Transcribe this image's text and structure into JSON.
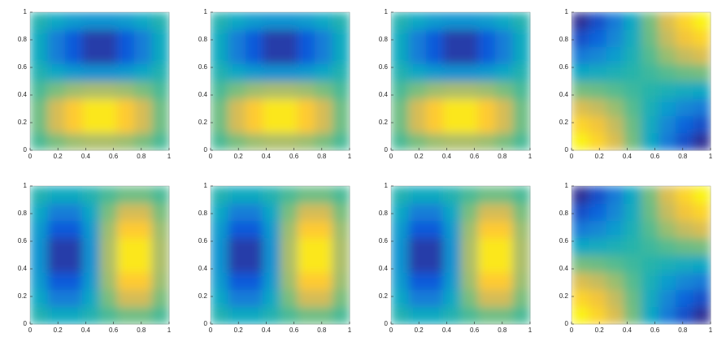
{
  "chart_data": [
    {
      "type": "heatmap",
      "xlim": [
        0,
        1
      ],
      "ylim": [
        0,
        1
      ],
      "xticks": [
        0,
        0.2,
        0.4,
        0.6,
        0.8,
        1
      ],
      "yticks": [
        0,
        0.2,
        0.4,
        0.6,
        0.8,
        1
      ],
      "clim": [
        -1,
        1
      ],
      "colormap": [
        "#352a87",
        "#0f5cdd",
        "#1481d6",
        "#06a4ca",
        "#2eb7a4",
        "#87bf77",
        "#d1bb59",
        "#fec832",
        "#f9fb0e"
      ],
      "z": [
        [
          0.08,
          0.21,
          0.32,
          0.37,
          0.37,
          0.32,
          0.21,
          0.08
        ],
        [
          0.18,
          0.52,
          0.76,
          0.9,
          0.9,
          0.76,
          0.52,
          0.18
        ],
        [
          0.18,
          0.52,
          0.76,
          0.9,
          0.9,
          0.76,
          0.52,
          0.18
        ],
        [
          0.08,
          0.21,
          0.32,
          0.37,
          0.37,
          0.32,
          0.21,
          0.08
        ],
        [
          -0.08,
          -0.21,
          -0.32,
          -0.37,
          -0.37,
          -0.32,
          -0.21,
          -0.08
        ],
        [
          -0.18,
          -0.52,
          -0.76,
          -0.9,
          -0.9,
          -0.76,
          -0.52,
          -0.18
        ],
        [
          -0.18,
          -0.52,
          -0.76,
          -0.9,
          -0.9,
          -0.76,
          -0.52,
          -0.18
        ],
        [
          -0.08,
          -0.21,
          -0.32,
          -0.37,
          -0.37,
          -0.32,
          -0.21,
          -0.08
        ]
      ]
    },
    {
      "type": "heatmap",
      "xlim": [
        0,
        1
      ],
      "ylim": [
        0,
        1
      ],
      "xticks": [
        0,
        0.2,
        0.4,
        0.6,
        0.8,
        1
      ],
      "yticks": [
        0,
        0.2,
        0.4,
        0.6,
        0.8,
        1
      ],
      "clim": [
        -1,
        1
      ],
      "colormap": [
        "#352a87",
        "#0f5cdd",
        "#1481d6",
        "#06a4ca",
        "#2eb7a4",
        "#87bf77",
        "#d1bb59",
        "#fec832",
        "#f9fb0e"
      ],
      "z": [
        [
          0.08,
          0.21,
          0.32,
          0.37,
          0.37,
          0.32,
          0.21,
          0.08
        ],
        [
          0.18,
          0.52,
          0.76,
          0.9,
          0.9,
          0.76,
          0.52,
          0.18
        ],
        [
          0.18,
          0.52,
          0.76,
          0.9,
          0.9,
          0.76,
          0.52,
          0.18
        ],
        [
          0.08,
          0.21,
          0.32,
          0.37,
          0.37,
          0.32,
          0.21,
          0.08
        ],
        [
          -0.08,
          -0.21,
          -0.32,
          -0.37,
          -0.37,
          -0.32,
          -0.21,
          -0.08
        ],
        [
          -0.18,
          -0.52,
          -0.76,
          -0.9,
          -0.9,
          -0.76,
          -0.52,
          -0.18
        ],
        [
          -0.18,
          -0.52,
          -0.76,
          -0.9,
          -0.9,
          -0.76,
          -0.52,
          -0.18
        ],
        [
          -0.08,
          -0.21,
          -0.32,
          -0.37,
          -0.37,
          -0.32,
          -0.21,
          -0.08
        ]
      ]
    },
    {
      "type": "heatmap",
      "xlim": [
        0,
        1
      ],
      "ylim": [
        0,
        1
      ],
      "xticks": [
        0,
        0.2,
        0.4,
        0.6,
        0.8,
        1
      ],
      "yticks": [
        0,
        0.2,
        0.4,
        0.6,
        0.8,
        1
      ],
      "clim": [
        -1,
        1
      ],
      "colormap": [
        "#352a87",
        "#0f5cdd",
        "#1481d6",
        "#06a4ca",
        "#2eb7a4",
        "#87bf77",
        "#d1bb59",
        "#fec832",
        "#f9fb0e"
      ],
      "z": [
        [
          0.08,
          0.21,
          0.32,
          0.37,
          0.37,
          0.32,
          0.21,
          0.08
        ],
        [
          0.18,
          0.52,
          0.76,
          0.9,
          0.9,
          0.76,
          0.52,
          0.18
        ],
        [
          0.18,
          0.52,
          0.76,
          0.9,
          0.9,
          0.76,
          0.52,
          0.18
        ],
        [
          0.08,
          0.21,
          0.32,
          0.37,
          0.37,
          0.32,
          0.21,
          0.08
        ],
        [
          -0.08,
          -0.21,
          -0.32,
          -0.37,
          -0.37,
          -0.32,
          -0.21,
          -0.08
        ],
        [
          -0.18,
          -0.52,
          -0.76,
          -0.9,
          -0.9,
          -0.76,
          -0.52,
          -0.18
        ],
        [
          -0.18,
          -0.52,
          -0.76,
          -0.9,
          -0.9,
          -0.76,
          -0.52,
          -0.18
        ],
        [
          -0.08,
          -0.21,
          -0.32,
          -0.37,
          -0.37,
          -0.32,
          -0.21,
          -0.08
        ]
      ]
    },
    {
      "type": "heatmap",
      "xlim": [
        0,
        1
      ],
      "ylim": [
        0,
        1
      ],
      "xticks": [
        0,
        0.2,
        0.4,
        0.6,
        0.8,
        1
      ],
      "yticks": [
        0,
        0.2,
        0.4,
        0.6,
        0.8,
        1
      ],
      "clim": [
        -1,
        1
      ],
      "colormap": [
        "#352a87",
        "#0f5cdd",
        "#1481d6",
        "#06a4ca",
        "#2eb7a4",
        "#87bf77",
        "#d1bb59",
        "#fec832",
        "#f9fb0e"
      ],
      "z": [
        [
          0.96,
          0.81,
          0.55,
          0.2,
          -0.2,
          -0.55,
          -0.81,
          -0.96
        ],
        [
          0.81,
          0.69,
          0.46,
          0.17,
          -0.17,
          -0.46,
          -0.69,
          -0.81
        ],
        [
          0.55,
          0.46,
          0.31,
          0.11,
          -0.11,
          -0.31,
          -0.46,
          -0.55
        ],
        [
          0.2,
          0.17,
          0.11,
          0.04,
          -0.04,
          -0.11,
          -0.17,
          -0.2
        ],
        [
          -0.2,
          -0.17,
          -0.11,
          -0.04,
          0.04,
          0.11,
          0.17,
          0.2
        ],
        [
          -0.55,
          -0.46,
          -0.31,
          -0.11,
          0.11,
          0.31,
          0.46,
          0.55
        ],
        [
          -0.81,
          -0.69,
          -0.46,
          -0.17,
          0.17,
          0.46,
          0.69,
          0.81
        ],
        [
          -0.96,
          -0.81,
          -0.55,
          -0.2,
          0.2,
          0.55,
          0.81,
          0.96
        ]
      ]
    },
    {
      "type": "heatmap",
      "xlim": [
        0,
        1
      ],
      "ylim": [
        0,
        1
      ],
      "xticks": [
        0,
        0.2,
        0.4,
        0.6,
        0.8,
        1
      ],
      "yticks": [
        0,
        0.2,
        0.4,
        0.6,
        0.8,
        1
      ],
      "clim": [
        -1,
        1
      ],
      "colormap": [
        "#352a87",
        "#0f5cdd",
        "#1481d6",
        "#06a4ca",
        "#2eb7a4",
        "#87bf77",
        "#d1bb59",
        "#fec832",
        "#f9fb0e"
      ],
      "z": [
        [
          -0.08,
          -0.18,
          -0.18,
          -0.08,
          0.08,
          0.18,
          0.18,
          0.08
        ],
        [
          -0.21,
          -0.52,
          -0.52,
          -0.21,
          0.21,
          0.52,
          0.52,
          0.21
        ],
        [
          -0.32,
          -0.76,
          -0.76,
          -0.32,
          0.32,
          0.76,
          0.76,
          0.32
        ],
        [
          -0.37,
          -0.9,
          -0.9,
          -0.37,
          0.37,
          0.9,
          0.9,
          0.37
        ],
        [
          -0.37,
          -0.9,
          -0.9,
          -0.37,
          0.37,
          0.9,
          0.9,
          0.37
        ],
        [
          -0.32,
          -0.76,
          -0.76,
          -0.32,
          0.32,
          0.76,
          0.76,
          0.32
        ],
        [
          -0.21,
          -0.52,
          -0.52,
          -0.21,
          0.21,
          0.52,
          0.52,
          0.21
        ],
        [
          -0.08,
          -0.18,
          -0.18,
          -0.08,
          0.08,
          0.18,
          0.18,
          0.08
        ]
      ]
    },
    {
      "type": "heatmap",
      "xlim": [
        0,
        1
      ],
      "ylim": [
        0,
        1
      ],
      "xticks": [
        0,
        0.2,
        0.4,
        0.6,
        0.8,
        1
      ],
      "yticks": [
        0,
        0.2,
        0.4,
        0.6,
        0.8,
        1
      ],
      "clim": [
        -1,
        1
      ],
      "colormap": [
        "#352a87",
        "#0f5cdd",
        "#1481d6",
        "#06a4ca",
        "#2eb7a4",
        "#87bf77",
        "#d1bb59",
        "#fec832",
        "#f9fb0e"
      ],
      "z": [
        [
          -0.08,
          -0.18,
          -0.18,
          -0.08,
          0.08,
          0.18,
          0.18,
          0.08
        ],
        [
          -0.21,
          -0.52,
          -0.52,
          -0.21,
          0.21,
          0.52,
          0.52,
          0.21
        ],
        [
          -0.32,
          -0.76,
          -0.76,
          -0.32,
          0.32,
          0.76,
          0.76,
          0.32
        ],
        [
          -0.37,
          -0.9,
          -0.9,
          -0.37,
          0.37,
          0.9,
          0.9,
          0.37
        ],
        [
          -0.37,
          -0.9,
          -0.9,
          -0.37,
          0.37,
          0.9,
          0.9,
          0.37
        ],
        [
          -0.32,
          -0.76,
          -0.76,
          -0.32,
          0.32,
          0.76,
          0.76,
          0.32
        ],
        [
          -0.21,
          -0.52,
          -0.52,
          -0.21,
          0.21,
          0.52,
          0.52,
          0.21
        ],
        [
          -0.08,
          -0.18,
          -0.18,
          -0.08,
          0.08,
          0.18,
          0.18,
          0.08
        ]
      ]
    },
    {
      "type": "heatmap",
      "xlim": [
        0,
        1
      ],
      "ylim": [
        0,
        1
      ],
      "xticks": [
        0,
        0.2,
        0.4,
        0.6,
        0.8,
        1
      ],
      "yticks": [
        0,
        0.2,
        0.4,
        0.6,
        0.8,
        1
      ],
      "clim": [
        -1,
        1
      ],
      "colormap": [
        "#352a87",
        "#0f5cdd",
        "#1481d6",
        "#06a4ca",
        "#2eb7a4",
        "#87bf77",
        "#d1bb59",
        "#fec832",
        "#f9fb0e"
      ],
      "z": [
        [
          -0.08,
          -0.18,
          -0.18,
          -0.08,
          0.08,
          0.18,
          0.18,
          0.08
        ],
        [
          -0.21,
          -0.52,
          -0.52,
          -0.21,
          0.21,
          0.52,
          0.52,
          0.21
        ],
        [
          -0.32,
          -0.76,
          -0.76,
          -0.32,
          0.32,
          0.76,
          0.76,
          0.32
        ],
        [
          -0.37,
          -0.9,
          -0.9,
          -0.37,
          0.37,
          0.9,
          0.9,
          0.37
        ],
        [
          -0.37,
          -0.9,
          -0.9,
          -0.37,
          0.37,
          0.9,
          0.9,
          0.37
        ],
        [
          -0.32,
          -0.76,
          -0.76,
          -0.32,
          0.32,
          0.76,
          0.76,
          0.32
        ],
        [
          -0.21,
          -0.52,
          -0.52,
          -0.21,
          0.21,
          0.52,
          0.52,
          0.21
        ],
        [
          -0.08,
          -0.18,
          -0.18,
          -0.08,
          0.08,
          0.18,
          0.18,
          0.08
        ]
      ]
    },
    {
      "type": "heatmap",
      "xlim": [
        0,
        1
      ],
      "ylim": [
        0,
        1
      ],
      "xticks": [
        0,
        0.2,
        0.4,
        0.6,
        0.8,
        1
      ],
      "yticks": [
        0,
        0.2,
        0.4,
        0.6,
        0.8,
        1
      ],
      "clim": [
        -1,
        1
      ],
      "colormap": [
        "#352a87",
        "#0f5cdd",
        "#1481d6",
        "#06a4ca",
        "#2eb7a4",
        "#87bf77",
        "#d1bb59",
        "#fec832",
        "#f9fb0e"
      ],
      "z": [
        [
          0.96,
          0.81,
          0.55,
          0.2,
          -0.2,
          -0.55,
          -0.81,
          -0.96
        ],
        [
          0.81,
          0.69,
          0.46,
          0.17,
          -0.17,
          -0.46,
          -0.69,
          -0.81
        ],
        [
          0.55,
          0.46,
          0.31,
          0.11,
          -0.11,
          -0.31,
          -0.46,
          -0.55
        ],
        [
          0.2,
          0.17,
          0.11,
          0.04,
          -0.04,
          -0.11,
          -0.17,
          -0.2
        ],
        [
          -0.2,
          -0.17,
          -0.11,
          -0.04,
          0.04,
          0.11,
          0.17,
          0.2
        ],
        [
          -0.55,
          -0.46,
          -0.31,
          -0.11,
          0.11,
          0.31,
          0.46,
          0.55
        ],
        [
          -0.81,
          -0.69,
          -0.46,
          -0.17,
          0.17,
          0.46,
          0.69,
          0.81
        ],
        [
          -0.96,
          -0.81,
          -0.55,
          -0.2,
          0.2,
          0.55,
          0.81,
          0.96
        ]
      ]
    }
  ]
}
